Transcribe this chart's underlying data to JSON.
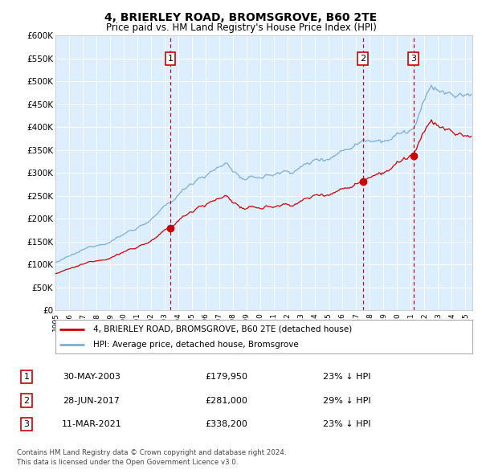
{
  "title": "4, BRIERLEY ROAD, BROMSGROVE, B60 2TE",
  "subtitle": "Price paid vs. HM Land Registry's House Price Index (HPI)",
  "legend_label_red": "4, BRIERLEY ROAD, BROMSGROVE, B60 2TE (detached house)",
  "legend_label_blue": "HPI: Average price, detached house, Bromsgrove",
  "footer_line1": "Contains HM Land Registry data © Crown copyright and database right 2024.",
  "footer_line2": "This data is licensed under the Open Government Licence v3.0.",
  "sales": [
    {
      "num": 1,
      "date": "30-MAY-2003",
      "price": 179950,
      "year": 2003.41,
      "pct": "23%",
      "dir": "↓"
    },
    {
      "num": 2,
      "date": "28-JUN-2017",
      "price": 281000,
      "year": 2017.49,
      "pct": "29%",
      "dir": "↓"
    },
    {
      "num": 3,
      "date": "11-MAR-2021",
      "price": 338200,
      "year": 2021.19,
      "pct": "23%",
      "dir": "↓"
    }
  ],
  "ylim": [
    0,
    600000
  ],
  "ytick_vals": [
    0,
    50000,
    100000,
    150000,
    200000,
    250000,
    300000,
    350000,
    400000,
    450000,
    500000,
    550000,
    600000
  ],
  "ytick_labels": [
    "£0",
    "£50K",
    "£100K",
    "£150K",
    "£200K",
    "£250K",
    "£300K",
    "£350K",
    "£400K",
    "£450K",
    "£500K",
    "£550K",
    "£600K"
  ],
  "xlim_start": 1995.0,
  "xlim_end": 2025.5,
  "red_color": "#cc0000",
  "blue_color": "#7bafd4",
  "dashed_color": "#cc0000",
  "background_color": "#ffffff",
  "plot_bg_color": "#ddeeff",
  "grid_color": "#ffffff"
}
